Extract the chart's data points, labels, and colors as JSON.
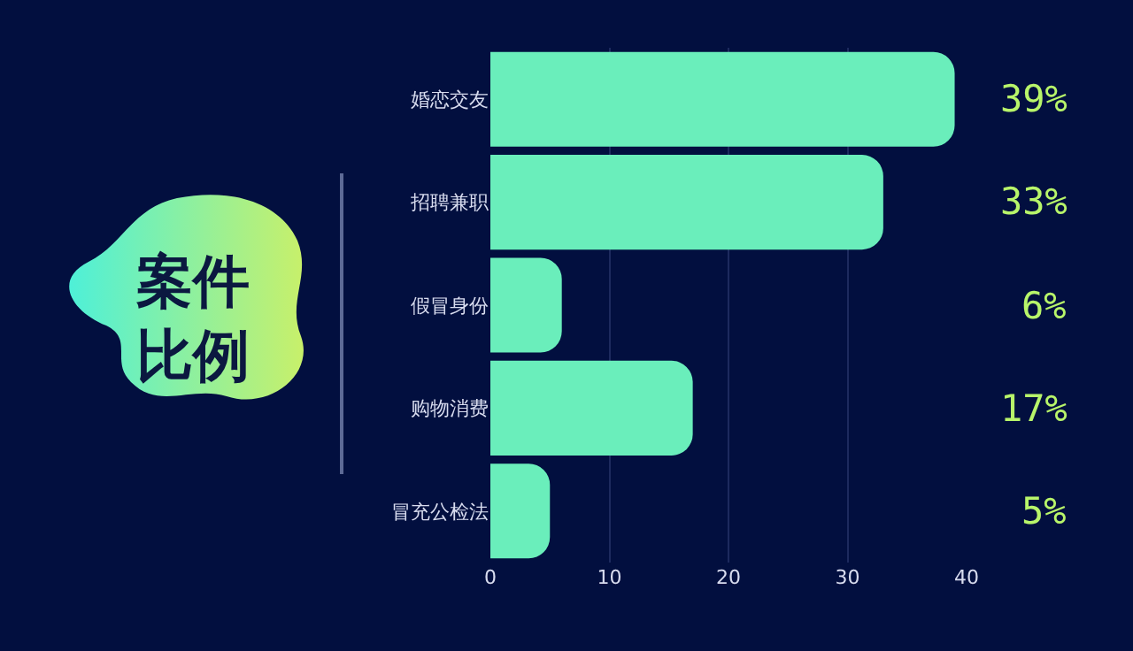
{
  "chart_data": {
    "type": "bar",
    "orientation": "horizontal",
    "title": "案件比例",
    "categories": [
      "婚恋交友",
      "招聘兼职",
      "假冒身份",
      "购物消费",
      "冒充公检法"
    ],
    "values": [
      39,
      33,
      6,
      17,
      5
    ],
    "value_labels": [
      "39%",
      "33%",
      "6%",
      "17%",
      "5%"
    ],
    "color": "#6aeebb",
    "xlim": [
      0,
      40
    ],
    "xticks": [
      0,
      10,
      20,
      30,
      40
    ],
    "grid": "x"
  }
}
